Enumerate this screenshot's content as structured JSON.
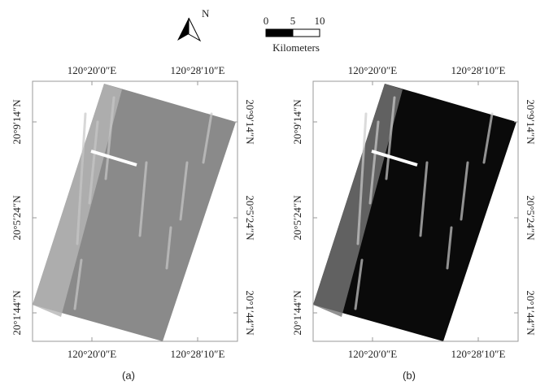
{
  "north_arrow": {
    "label": "N"
  },
  "scale_bar": {
    "ticks": [
      "0",
      "5",
      "10"
    ],
    "unit": "Kilometers"
  },
  "panels": [
    {
      "label": "(a)",
      "top_labels": [
        "120°20′0″E",
        "120°28′10″E"
      ],
      "bottom_labels": [
        "120°20′0″E",
        "120°28′10″E"
      ],
      "left_labels": [
        "20°9′14″N",
        "20°5′24″N",
        "20°1′44″N"
      ],
      "right_labels": [
        "20°9′14″N",
        "20°5′24″N",
        "20°1′44″N"
      ]
    },
    {
      "label": "(b)",
      "top_labels": [
        "120°20′0″E",
        "120°28′10″E"
      ],
      "bottom_labels": [
        "120°20′0″E",
        "120°28′10″E"
      ],
      "left_labels": [
        "20°9′14″N",
        "20°5′24″N",
        "20°1′44″N"
      ],
      "right_labels": [
        "20°9′14″N",
        "20°5′24″N",
        "20°1′44″N"
      ]
    }
  ]
}
